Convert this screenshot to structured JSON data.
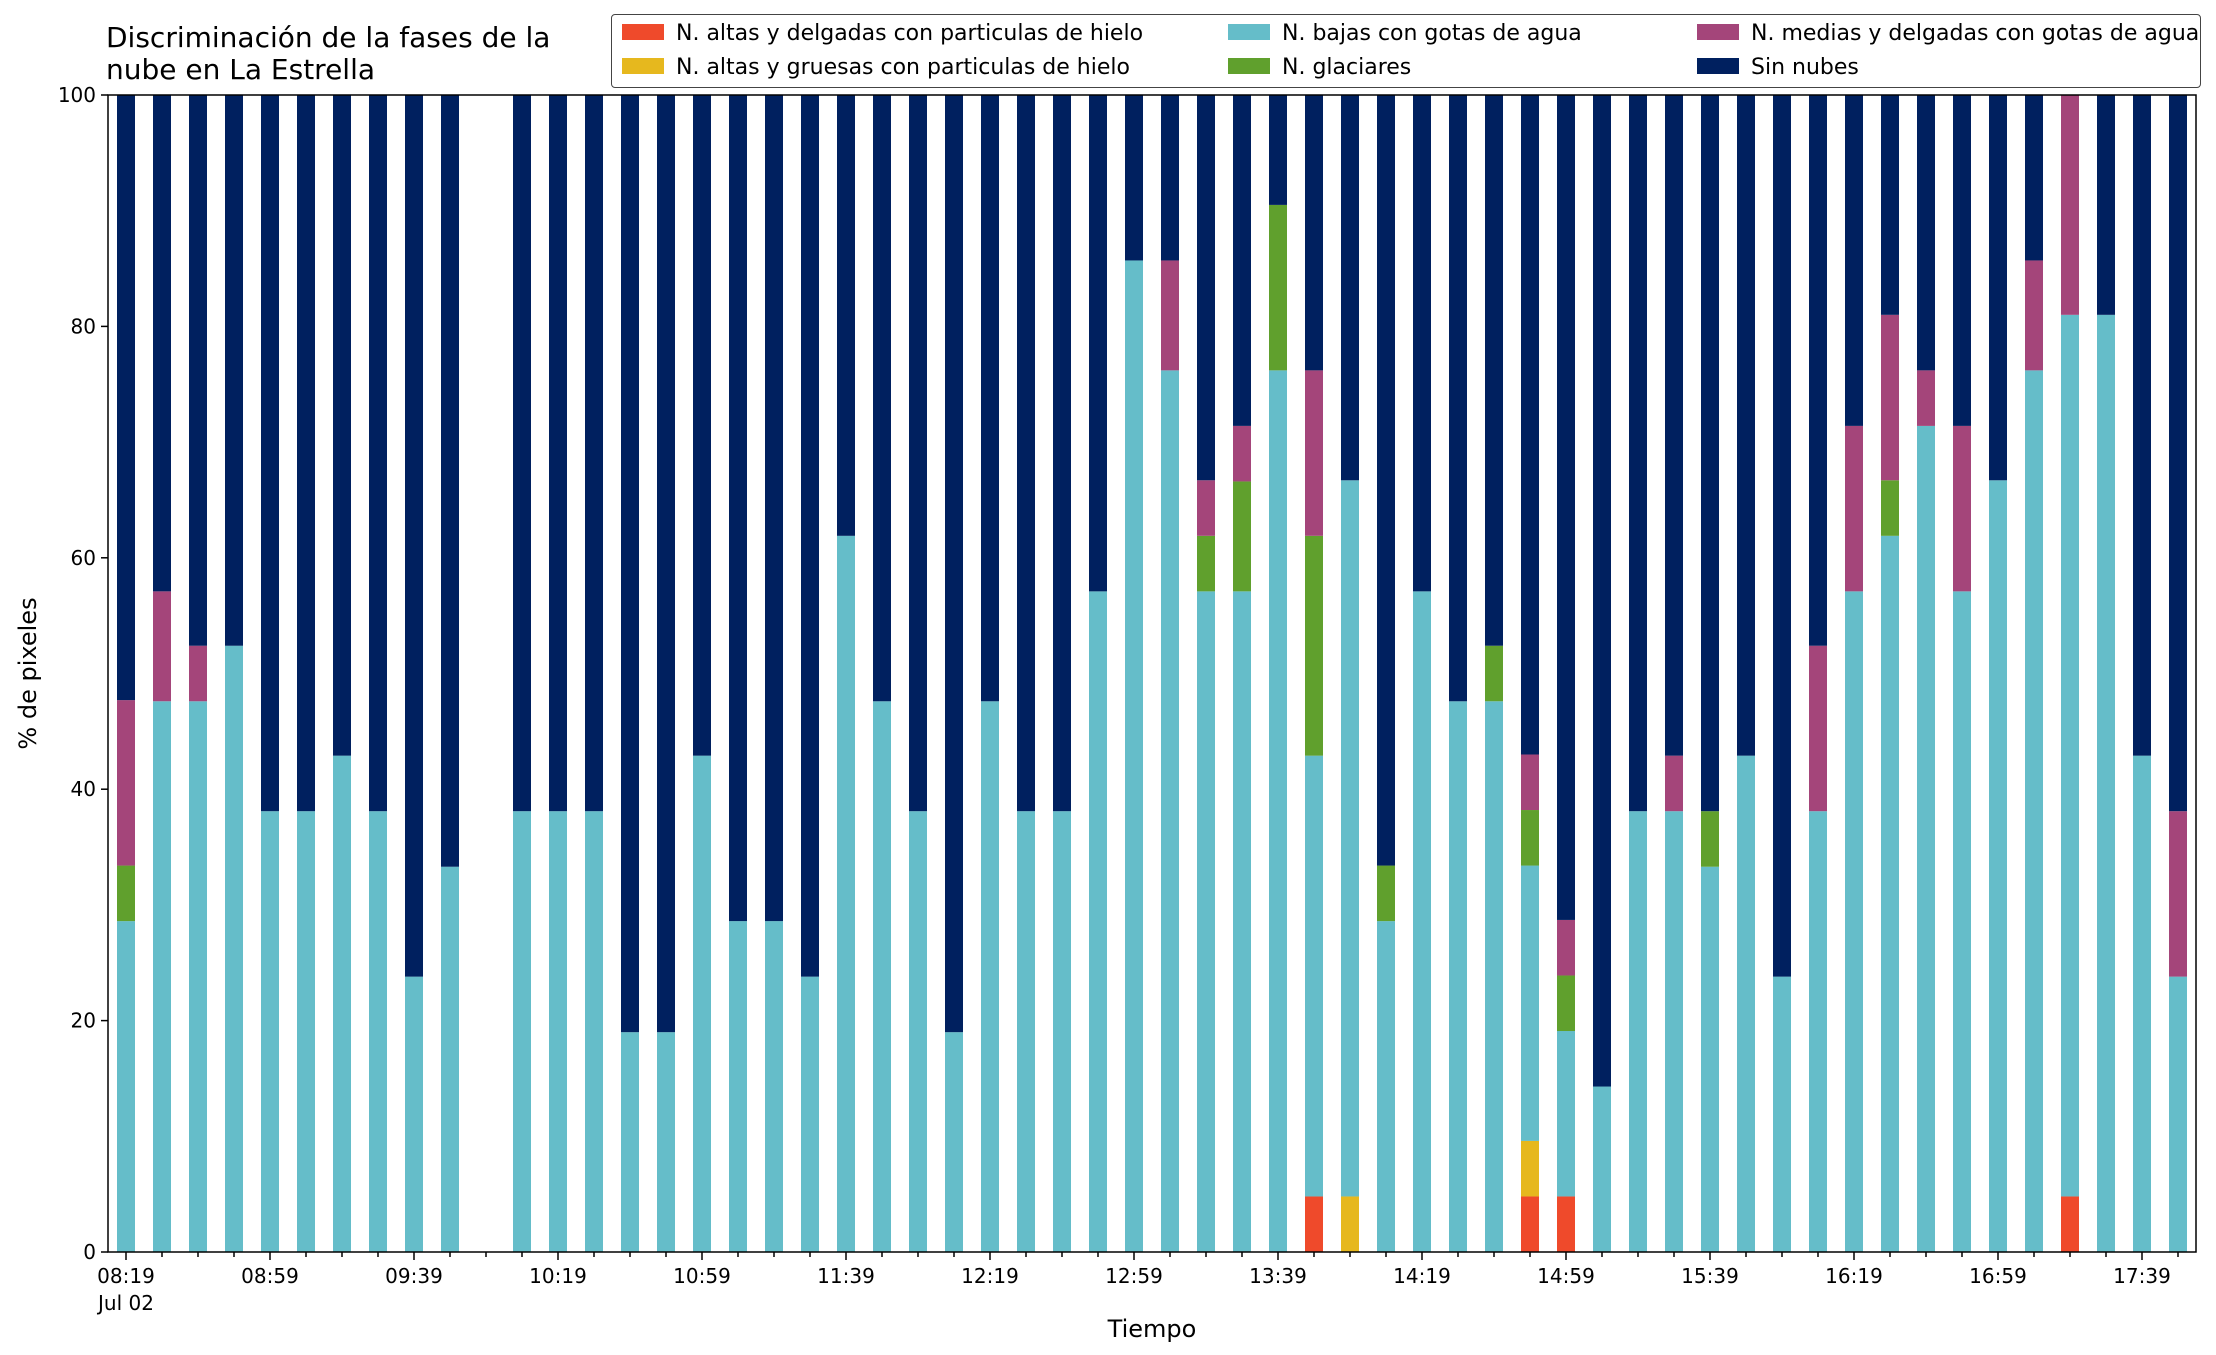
{
  "chart_data": {
    "type": "bar",
    "stacked": true,
    "title": "Discriminación de la fases de la\nnube en La Estrella",
    "xlabel": "Tiempo",
    "ylabel": "% de pixeles",
    "ylim": [
      0,
      100
    ],
    "yticks": [
      0,
      20,
      40,
      60,
      80,
      100
    ],
    "grid": false,
    "legend_placement": "top-right",
    "x_start": "08:19",
    "x_step_minutes": 10,
    "x_start_secondary_label": "Jul 02",
    "xtick_labels": [
      "08:19",
      "08:59",
      "09:39",
      "10:19",
      "10:59",
      "11:39",
      "12:19",
      "12:59",
      "13:39",
      "14:19",
      "14:59",
      "15:39",
      "16:19",
      "16:59",
      "17:39"
    ],
    "categories": [
      "08:19",
      "08:29",
      "08:39",
      "08:49",
      "08:59",
      "09:09",
      "09:19",
      "09:29",
      "09:39",
      "09:49",
      "09:59",
      "10:09",
      "10:19",
      "10:29",
      "10:39",
      "10:49",
      "10:59",
      "11:09",
      "11:19",
      "11:29",
      "11:39",
      "11:49",
      "11:59",
      "12:09",
      "12:19",
      "12:29",
      "12:39",
      "12:49",
      "12:59",
      "13:09",
      "13:19",
      "13:29",
      "13:39",
      "13:49",
      "13:59",
      "14:09",
      "14:19",
      "14:29",
      "14:39",
      "14:49",
      "14:59",
      "15:09",
      "15:19",
      "15:29",
      "15:39",
      "15:49",
      "15:59",
      "16:09",
      "16:19",
      "16:29",
      "16:39",
      "16:49",
      "16:59",
      "17:09",
      "17:19",
      "17:29",
      "17:39",
      "17:49"
    ],
    "series": [
      {
        "name": "N. altas y delgadas con particulas de hielo",
        "color": "#ef4a2b",
        "values": [
          0,
          0,
          0,
          0,
          0,
          0,
          0,
          0,
          0,
          0,
          null,
          0,
          0,
          0,
          0,
          0,
          0,
          0,
          0,
          0,
          0,
          0,
          0,
          0,
          0,
          0,
          0,
          0,
          0,
          0,
          0,
          0,
          0,
          4.8,
          0,
          0,
          0,
          0,
          0,
          4.8,
          4.8,
          0,
          0,
          0,
          0,
          0,
          0,
          0,
          0,
          0,
          0,
          0,
          0,
          0,
          4.8,
          0,
          0,
          0
        ]
      },
      {
        "name": "N. altas y gruesas con particulas de hielo",
        "color": "#e6b81e",
        "values": [
          0,
          0,
          0,
          0,
          0,
          0,
          0,
          0,
          0,
          0,
          null,
          0,
          0,
          0,
          0,
          0,
          0,
          0,
          0,
          0,
          0,
          0,
          0,
          0,
          0,
          0,
          0,
          0,
          0,
          0,
          0,
          0,
          0,
          0,
          4.8,
          0,
          0,
          0,
          0,
          4.8,
          0,
          0,
          0,
          0,
          0,
          0,
          0,
          0,
          0,
          0,
          0,
          0,
          0,
          0,
          0,
          0,
          0,
          0
        ]
      },
      {
        "name": "N. bajas con gotas de agua",
        "color": "#65bdc9",
        "values": [
          28.6,
          47.6,
          47.6,
          52.4,
          38.1,
          38.1,
          42.9,
          38.1,
          23.8,
          33.3,
          null,
          38.1,
          38.1,
          38.1,
          19.0,
          19.0,
          42.9,
          28.6,
          28.6,
          23.8,
          61.9,
          47.6,
          38.1,
          19.0,
          47.6,
          38.1,
          38.1,
          57.1,
          85.7,
          76.2,
          57.1,
          57.1,
          76.2,
          38.1,
          61.9,
          28.6,
          57.1,
          47.6,
          47.6,
          23.8,
          14.3,
          14.3,
          38.1,
          38.1,
          33.3,
          42.9,
          23.8,
          38.1,
          57.1,
          61.9,
          71.4,
          57.1,
          66.7,
          76.2,
          76.2,
          81.0,
          42.9,
          23.8
        ]
      },
      {
        "name": "N. glaciares",
        "color": "#60a02d",
        "values": [
          4.8,
          0,
          0,
          0,
          0,
          0,
          0,
          0,
          0,
          0,
          null,
          0,
          0,
          0,
          0,
          0,
          0,
          0,
          0,
          0,
          0,
          0,
          0,
          0,
          0,
          0,
          0,
          0,
          0,
          0,
          4.8,
          9.5,
          14.3,
          19.0,
          0,
          4.8,
          0,
          0,
          4.8,
          4.8,
          4.8,
          0,
          0,
          0,
          4.8,
          0,
          0,
          0,
          0,
          4.8,
          0,
          0,
          0,
          0,
          0,
          0,
          0,
          0
        ]
      },
      {
        "name": "N. medias y delgadas con gotas de agua",
        "color": "#a4457a",
        "values": [
          14.3,
          9.5,
          4.8,
          0,
          0,
          0,
          0,
          0,
          0,
          0,
          null,
          0,
          0,
          0,
          0,
          0,
          0,
          0,
          0,
          0,
          0,
          0,
          0,
          0,
          0,
          0,
          0,
          0,
          0,
          9.5,
          4.8,
          4.8,
          0,
          14.3,
          0,
          0,
          0,
          0,
          0,
          4.8,
          4.8,
          0,
          0,
          4.8,
          0,
          0,
          0,
          14.3,
          14.3,
          14.3,
          4.8,
          14.3,
          0,
          9.5,
          19.0,
          0,
          0,
          14.3
        ]
      },
      {
        "name": "Sin nubes",
        "color": "#00205f",
        "values": [
          52.3,
          42.9,
          47.6,
          47.6,
          61.9,
          61.9,
          57.1,
          61.9,
          76.2,
          66.7,
          null,
          61.9,
          61.9,
          61.9,
          81.0,
          81.0,
          57.1,
          71.4,
          71.4,
          76.2,
          38.1,
          52.4,
          61.9,
          81.0,
          52.4,
          61.9,
          61.9,
          42.9,
          14.3,
          14.3,
          33.3,
          28.6,
          9.5,
          23.8,
          33.3,
          66.6,
          42.9,
          52.4,
          47.6,
          57.1,
          71.4,
          85.7,
          61.9,
          57.1,
          61.9,
          57.1,
          76.2,
          47.6,
          28.6,
          19.0,
          23.8,
          28.6,
          33.3,
          14.3,
          0,
          19.0,
          57.1,
          61.9
        ]
      }
    ]
  }
}
